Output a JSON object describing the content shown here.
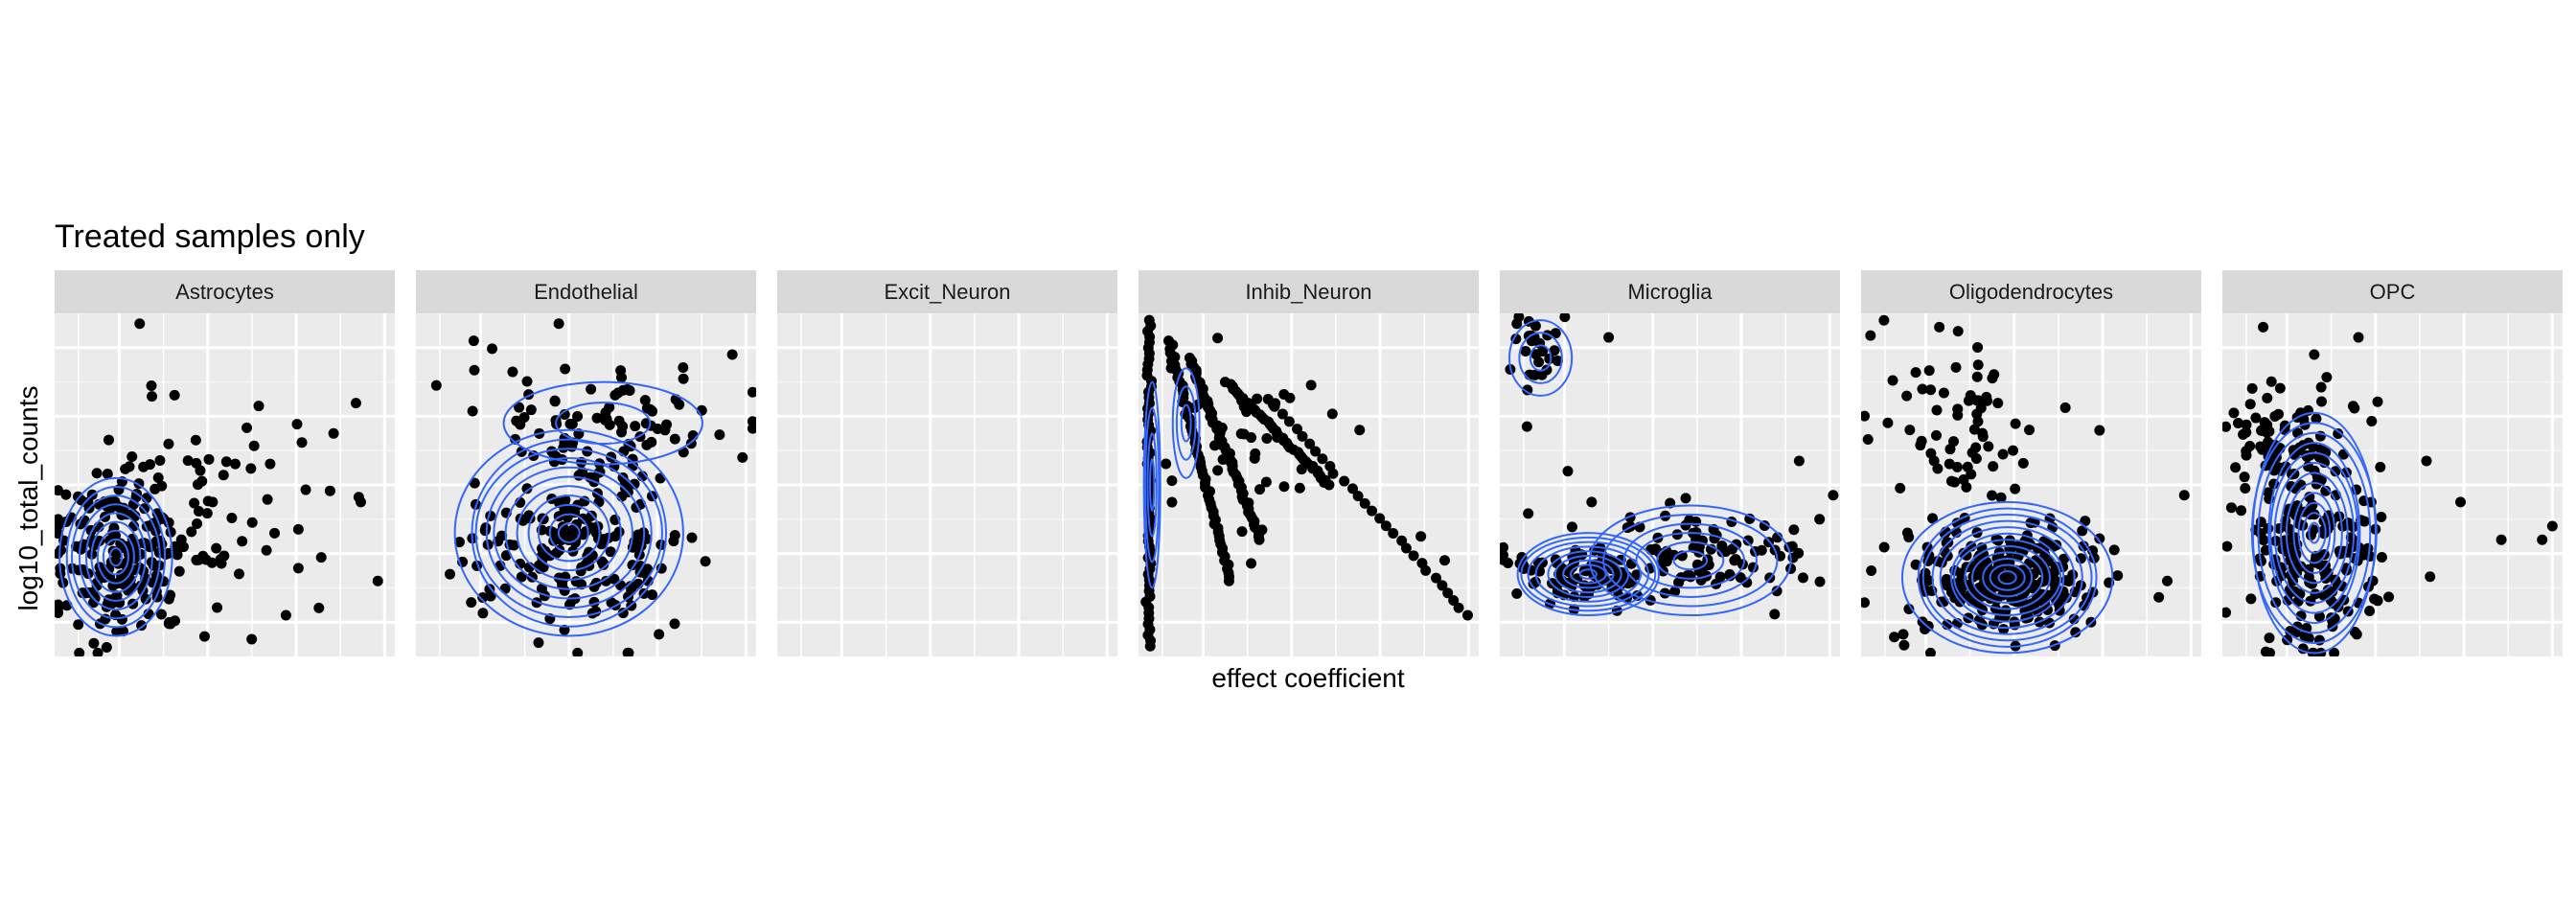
{
  "chart_data": {
    "type": "scatter",
    "title": "Treated samples only",
    "xlabel": "effect coefficient",
    "ylabel": "log10_total_counts",
    "grid": true,
    "overlay": "2d density contours",
    "colors": {
      "points": "#000000",
      "contours": "#3366ff",
      "panel_bg": "#ebebeb",
      "strip_bg": "#d9d9d9",
      "grid": "#ffffff"
    },
    "facets": [
      {
        "name": "Astrocytes",
        "clusters": [
          {
            "cx": 0.19,
            "cy": 0.71,
            "sx": 0.1,
            "sy": 0.13,
            "n": 180
          },
          {
            "cx": 0.45,
            "cy": 0.58,
            "sx": 0.16,
            "sy": 0.16,
            "n": 70
          }
        ],
        "outliers": [
          [
            0.25,
            0.03
          ],
          [
            0.95,
            0.78
          ],
          [
            0.82,
            0.35
          ],
          [
            0.9,
            0.55
          ],
          [
            0.6,
            0.27
          ],
          [
            0.68,
            0.88
          ]
        ],
        "contours": [
          {
            "cx": 0.18,
            "cy": 0.71,
            "rx": 0.16,
            "ry": 0.23,
            "levels": 9
          }
        ]
      },
      {
        "name": "Endothelial",
        "clusters": [
          {
            "cx": 0.45,
            "cy": 0.68,
            "sx": 0.15,
            "sy": 0.11,
            "n": 180
          },
          {
            "cx": 0.55,
            "cy": 0.33,
            "sx": 0.18,
            "sy": 0.09,
            "n": 90
          }
        ],
        "outliers": [
          [
            0.42,
            0.03
          ],
          [
            0.17,
            0.08
          ],
          [
            0.06,
            0.21
          ],
          [
            0.93,
            0.12
          ],
          [
            0.1,
            0.76
          ],
          [
            0.96,
            0.42
          ]
        ],
        "contours": [
          {
            "cx": 0.45,
            "cy": 0.64,
            "rx": 0.33,
            "ry": 0.3,
            "levels": 11
          },
          {
            "cx": 0.55,
            "cy": 0.32,
            "rx": 0.28,
            "ry": 0.12,
            "levels": 2
          }
        ]
      },
      {
        "name": "Excit_Neuron",
        "clusters": [],
        "outliers": [],
        "contours": []
      },
      {
        "name": "Inhib_Neuron",
        "lines": [
          {
            "x0": 0.03,
            "y0": 0.02,
            "x1": 0.03,
            "y1": 0.97,
            "n": 60
          },
          {
            "x0": 0.09,
            "y0": 0.08,
            "x1": 0.27,
            "y1": 0.78,
            "n": 60
          },
          {
            "x0": 0.15,
            "y0": 0.13,
            "x1": 0.36,
            "y1": 0.66,
            "n": 60
          },
          {
            "x0": 0.26,
            "y0": 0.2,
            "x1": 0.56,
            "y1": 0.5,
            "n": 45
          },
          {
            "x0": 0.38,
            "y0": 0.25,
            "x1": 0.97,
            "y1": 0.88,
            "n": 30
          }
        ],
        "clusters": [
          {
            "cx": 0.3,
            "cy": 0.35,
            "sx": 0.12,
            "sy": 0.12,
            "n": 40
          }
        ],
        "outliers": [
          [
            0.65,
            0.34
          ],
          [
            0.83,
            0.65
          ],
          [
            0.9,
            0.72
          ]
        ],
        "contours": [
          {
            "cx": 0.04,
            "cy": 0.5,
            "rx": 0.025,
            "ry": 0.3,
            "levels": 4
          },
          {
            "cx": 0.14,
            "cy": 0.32,
            "rx": 0.04,
            "ry": 0.16,
            "levels": 3
          }
        ]
      },
      {
        "name": "Microglia",
        "clusters": [
          {
            "cx": 0.25,
            "cy": 0.76,
            "sx": 0.1,
            "sy": 0.05,
            "n": 90
          },
          {
            "cx": 0.6,
            "cy": 0.71,
            "sx": 0.16,
            "sy": 0.07,
            "n": 90
          },
          {
            "cx": 0.1,
            "cy": 0.11,
            "sx": 0.04,
            "sy": 0.05,
            "n": 25
          }
        ],
        "outliers": [
          [
            0.05,
            0.03
          ],
          [
            0.32,
            0.07
          ],
          [
            0.08,
            0.33
          ],
          [
            0.2,
            0.46
          ],
          [
            0.27,
            0.55
          ],
          [
            0.98,
            0.53
          ],
          [
            0.94,
            0.6
          ],
          [
            0.88,
            0.43
          ]
        ],
        "contours": [
          {
            "cx": 0.26,
            "cy": 0.76,
            "rx": 0.22,
            "ry": 0.12,
            "levels": 9
          },
          {
            "cx": 0.56,
            "cy": 0.72,
            "rx": 0.3,
            "ry": 0.16,
            "levels": 6
          },
          {
            "cx": 0.12,
            "cy": 0.13,
            "rx": 0.09,
            "ry": 0.11,
            "levels": 3
          }
        ]
      },
      {
        "name": "Oligodendrocytes",
        "clusters": [
          {
            "cx": 0.42,
            "cy": 0.77,
            "sx": 0.14,
            "sy": 0.08,
            "n": 260
          },
          {
            "cx": 0.3,
            "cy": 0.35,
            "sx": 0.12,
            "sy": 0.14,
            "n": 70
          }
        ],
        "outliers": [
          [
            0.23,
            0.04
          ],
          [
            0.03,
            0.75
          ],
          [
            0.9,
            0.78
          ],
          [
            0.95,
            0.53
          ]
        ],
        "contours": [
          {
            "cx": 0.43,
            "cy": 0.77,
            "rx": 0.3,
            "ry": 0.22,
            "levels": 12
          }
        ]
      },
      {
        "name": "OPC",
        "clusters": [
          {
            "cx": 0.27,
            "cy": 0.67,
            "sx": 0.1,
            "sy": 0.17,
            "n": 200
          },
          {
            "cx": 0.14,
            "cy": 0.34,
            "sx": 0.09,
            "sy": 0.07,
            "n": 50
          }
        ],
        "outliers": [
          [
            0.12,
            0.04
          ],
          [
            0.27,
            0.12
          ],
          [
            0.4,
            0.07
          ],
          [
            0.6,
            0.43
          ],
          [
            0.7,
            0.55
          ],
          [
            0.82,
            0.66
          ],
          [
            0.94,
            0.66
          ],
          [
            0.97,
            0.62
          ]
        ],
        "contours": [
          {
            "cx": 0.27,
            "cy": 0.64,
            "rx": 0.19,
            "ry": 0.35,
            "levels": 12
          }
        ]
      }
    ]
  }
}
